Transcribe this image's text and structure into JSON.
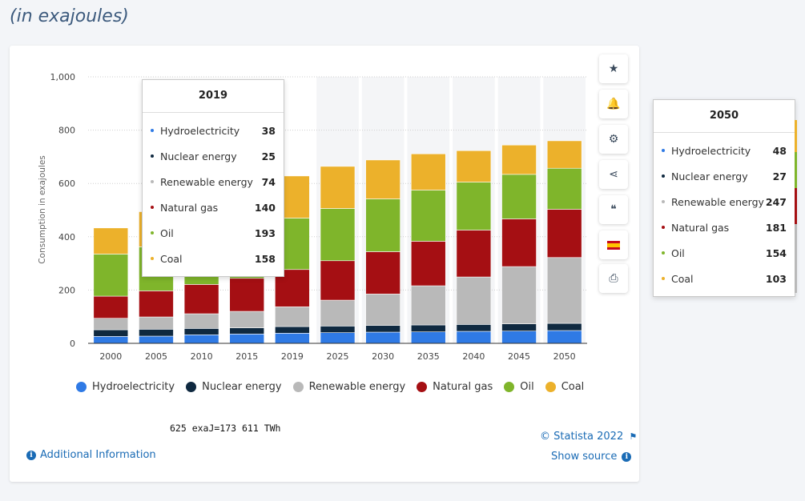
{
  "heading": "(in exajoules)",
  "colors": {
    "hydro": "#2f7ae5",
    "nuclear": "#0f2940",
    "renewable": "#b9b9b9",
    "gas": "#a50f13",
    "oil": "#7fb52b",
    "coal": "#ecb12b"
  },
  "chart_data": {
    "type": "bar",
    "stacked": true,
    "categories": [
      "2000",
      "2005",
      "2010",
      "2015",
      "2019",
      "2025",
      "2030",
      "2035",
      "2040",
      "2045",
      "2050"
    ],
    "series": [
      {
        "name": "Hydroelectricity",
        "color_key": "hydro",
        "values": [
          26,
          27,
          32,
          35,
          38,
          40,
          42,
          43,
          45,
          46,
          48
        ]
      },
      {
        "name": "Nuclear energy",
        "color_key": "nuclear",
        "values": [
          25,
          26,
          24,
          23,
          25,
          25,
          25,
          26,
          26,
          27,
          27
        ]
      },
      {
        "name": "Renewable energy",
        "color_key": "renewable",
        "values": [
          43,
          46,
          55,
          62,
          74,
          97,
          118,
          147,
          178,
          215,
          247
        ]
      },
      {
        "name": "Natural gas",
        "color_key": "gas",
        "values": [
          83,
          98,
          110,
          124,
          140,
          148,
          159,
          167,
          176,
          179,
          181
        ]
      },
      {
        "name": "Oil",
        "color_key": "oil",
        "values": [
          158,
          165,
          170,
          178,
          193,
          196,
          198,
          192,
          180,
          167,
          154
        ]
      },
      {
        "name": "Coal",
        "color_key": "coal",
        "values": [
          98,
          132,
          138,
          140,
          158,
          158,
          146,
          136,
          118,
          110,
          103
        ]
      }
    ],
    "ylabel": "Consumption in exajoules",
    "ylim": [
      0,
      1000
    ],
    "yticks": [
      "0",
      "200",
      "400",
      "600",
      "800",
      "1,000"
    ],
    "grid": true,
    "legend_position": "bottom"
  },
  "note": "625 exaJ=173 611 TWh",
  "copyright": "© Statista 2022",
  "additional_info": "Additional Information",
  "show_source": "Show source",
  "side_buttons": [
    {
      "icon": "star-icon",
      "glyph": "★"
    },
    {
      "icon": "bell-icon",
      "glyph": "🔔"
    },
    {
      "icon": "gear-icon",
      "glyph": "⚙"
    },
    {
      "icon": "share-icon",
      "glyph": "⋖"
    },
    {
      "icon": "quote-icon",
      "glyph": "❝"
    },
    {
      "icon": "flag-spain-icon",
      "glyph": ""
    },
    {
      "icon": "print-icon",
      "glyph": "⎙"
    }
  ],
  "tooltips": [
    {
      "year": "2019",
      "rows": [
        {
          "label": "Hydroelectricity",
          "value": "38",
          "color_key": "hydro"
        },
        {
          "label": "Nuclear energy",
          "value": "25",
          "color_key": "nuclear"
        },
        {
          "label": "Renewable energy",
          "value": "74",
          "color_key": "renewable"
        },
        {
          "label": "Natural gas",
          "value": "140",
          "color_key": "gas"
        },
        {
          "label": "Oil",
          "value": "193",
          "color_key": "oil"
        },
        {
          "label": "Coal",
          "value": "158",
          "color_key": "coal"
        }
      ]
    },
    {
      "year": "2050",
      "rows": [
        {
          "label": "Hydroelectricity",
          "value": "48",
          "color_key": "hydro"
        },
        {
          "label": "Nuclear energy",
          "value": "27",
          "color_key": "nuclear"
        },
        {
          "label": "Renewable energy",
          "value": "247",
          "color_key": "renewable"
        },
        {
          "label": "Natural gas",
          "value": "181",
          "color_key": "gas"
        },
        {
          "label": "Oil",
          "value": "154",
          "color_key": "oil"
        },
        {
          "label": "Coal",
          "value": "103",
          "color_key": "coal"
        }
      ]
    }
  ]
}
